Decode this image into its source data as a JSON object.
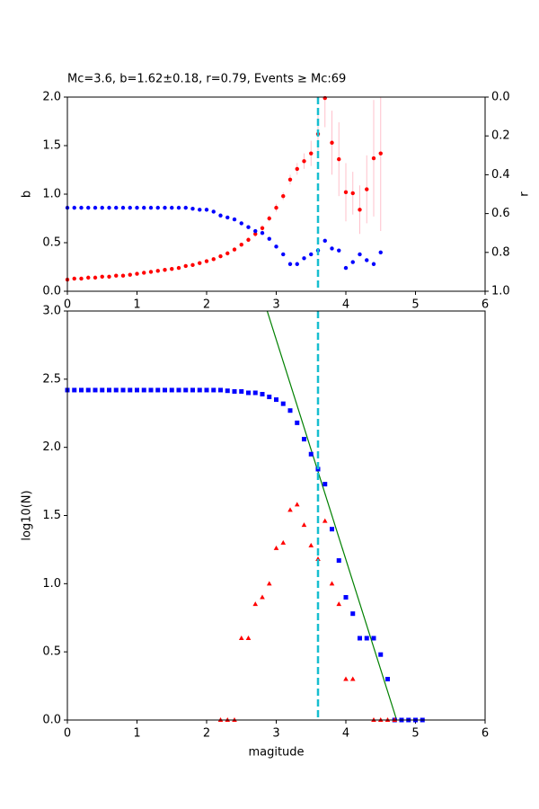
{
  "chart_data": [
    {
      "type": "scatter",
      "title": "Mc=3.6, b=1.62±0.18, r=0.79, Events ≥ Mc:69",
      "y_label": "b",
      "y2_label": "r",
      "xlim": [
        0,
        6
      ],
      "xticks": [
        0,
        1,
        2,
        3,
        4,
        5,
        6
      ],
      "ylim": [
        0,
        2
      ],
      "yticks": [
        {
          "value": 0,
          "label": "0.0"
        },
        {
          "value": 0.5,
          "label": "0.5"
        },
        {
          "value": 1,
          "label": "1.0"
        },
        {
          "value": 1.5,
          "label": "1.5"
        },
        {
          "value": 2,
          "label": "2.0"
        }
      ],
      "y2lim": [
        1,
        0
      ],
      "y2ticks": [
        {
          "value": 0,
          "label": "0.0"
        },
        {
          "value": 0.2,
          "label": "0.2"
        },
        {
          "value": 0.4,
          "label": "0.4"
        },
        {
          "value": 0.6,
          "label": "0.6"
        },
        {
          "value": 0.8,
          "label": "0.8"
        },
        {
          "value": 1,
          "label": "1.0"
        }
      ],
      "mc_line": 3.6,
      "mc_color": "#17becf",
      "series": [
        {
          "color": "#ff0000",
          "marker": "circle",
          "error_color": "#ffc0cb",
          "x": [
            0,
            0.1,
            0.2,
            0.3,
            0.4,
            0.5,
            0.6,
            0.7,
            0.8,
            0.9,
            1,
            1.1,
            1.2,
            1.3,
            1.4,
            1.5,
            1.6,
            1.7,
            1.8,
            1.9,
            2,
            2.1,
            2.2,
            2.3,
            2.4,
            2.5,
            2.6,
            2.7,
            2.8,
            2.9,
            3,
            3.1,
            3.2,
            3.3,
            3.4,
            3.5,
            3.6,
            3.7,
            3.8,
            3.9,
            4,
            4.1,
            4.2,
            4.3,
            4.4,
            4.5
          ],
          "values": [
            0.12,
            0.13,
            0.13,
            0.14,
            0.14,
            0.15,
            0.15,
            0.16,
            0.16,
            0.17,
            0.18,
            0.19,
            0.2,
            0.21,
            0.22,
            0.23,
            0.24,
            0.26,
            0.27,
            0.29,
            0.31,
            0.33,
            0.36,
            0.39,
            0.43,
            0.48,
            0.53,
            0.59,
            0.65,
            0.75,
            0.86,
            0.98,
            1.15,
            1.26,
            1.34,
            1.42,
            1.62,
            1.99,
            1.53,
            1.36,
            1.02,
            1.01,
            0.84,
            1.05,
            1.37,
            1.42
          ],
          "errors": [
            0.01,
            0.01,
            0.01,
            0.01,
            0.01,
            0.01,
            0.01,
            0.01,
            0.01,
            0.01,
            0.01,
            0.01,
            0.01,
            0.01,
            0.01,
            0.01,
            0.01,
            0.01,
            0.01,
            0.01,
            0.01,
            0.01,
            0.01,
            0.02,
            0.02,
            0.02,
            0.02,
            0.03,
            0.03,
            0.03,
            0.04,
            0.04,
            0.05,
            0.06,
            0.08,
            0.13,
            0.2,
            0.3,
            0.33,
            0.38,
            0.3,
            0.22,
            0.25,
            0.35,
            0.6,
            0.8
          ]
        },
        {
          "color": "#0000ff",
          "marker": "circle",
          "axis": "y2",
          "x": [
            0,
            0.1,
            0.2,
            0.3,
            0.4,
            0.5,
            0.6,
            0.7,
            0.8,
            0.9,
            1,
            1.1,
            1.2,
            1.3,
            1.4,
            1.5,
            1.6,
            1.7,
            1.8,
            1.9,
            2,
            2.1,
            2.2,
            2.3,
            2.4,
            2.5,
            2.6,
            2.7,
            2.8,
            2.9,
            3,
            3.1,
            3.2,
            3.3,
            3.4,
            3.5,
            3.6,
            3.7,
            3.8,
            3.9,
            4,
            4.1,
            4.2,
            4.3,
            4.4,
            4.5
          ],
          "values": [
            0.57,
            0.57,
            0.57,
            0.57,
            0.57,
            0.57,
            0.57,
            0.57,
            0.57,
            0.57,
            0.57,
            0.57,
            0.57,
            0.57,
            0.57,
            0.57,
            0.57,
            0.57,
            0.575,
            0.58,
            0.58,
            0.59,
            0.61,
            0.62,
            0.63,
            0.65,
            0.67,
            0.69,
            0.7,
            0.73,
            0.77,
            0.81,
            0.86,
            0.86,
            0.83,
            0.81,
            0.79,
            0.74,
            0.78,
            0.79,
            0.88,
            0.85,
            0.81,
            0.84,
            0.86,
            0.8
          ]
        }
      ]
    },
    {
      "type": "scatter",
      "x_label": "magitude",
      "y_label": "log10(N)",
      "xlim": [
        0,
        6
      ],
      "xticks": [
        0,
        1,
        2,
        3,
        4,
        5,
        6
      ],
      "ylim": [
        0,
        3
      ],
      "yticks": [
        {
          "value": 0,
          "label": "0.0"
        },
        {
          "value": 0.5,
          "label": "0.5"
        },
        {
          "value": 1,
          "label": "1.0"
        },
        {
          "value": 1.5,
          "label": "1.5"
        },
        {
          "value": 2,
          "label": "2.0"
        },
        {
          "value": 2.5,
          "label": "2.5"
        },
        {
          "value": 3,
          "label": "3.0"
        }
      ],
      "mc_line": 3.6,
      "mc_color": "#17becf",
      "series": [
        {
          "color": "#008000",
          "marker": "line",
          "x": [
            2.87,
            4.73
          ],
          "values": [
            3.0,
            0
          ]
        },
        {
          "color": "#0000ff",
          "marker": "square",
          "x": [
            0,
            0.1,
            0.2,
            0.3,
            0.4,
            0.5,
            0.6,
            0.7,
            0.8,
            0.9,
            1,
            1.1,
            1.2,
            1.3,
            1.4,
            1.5,
            1.6,
            1.7,
            1.8,
            1.9,
            2,
            2.1,
            2.2,
            2.3,
            2.4,
            2.5,
            2.6,
            2.7,
            2.8,
            2.9,
            3,
            3.1,
            3.2,
            3.3,
            3.4,
            3.5,
            3.6,
            3.7,
            3.8,
            3.9,
            4,
            4.1,
            4.2,
            4.3,
            4.4,
            4.5,
            4.6,
            4.7,
            4.8,
            4.9,
            5,
            5.1
          ],
          "values": [
            2.42,
            2.42,
            2.42,
            2.42,
            2.42,
            2.42,
            2.42,
            2.42,
            2.42,
            2.42,
            2.42,
            2.42,
            2.42,
            2.42,
            2.42,
            2.42,
            2.42,
            2.42,
            2.42,
            2.42,
            2.42,
            2.42,
            2.42,
            2.415,
            2.41,
            2.41,
            2.4,
            2.4,
            2.39,
            2.37,
            2.35,
            2.32,
            2.27,
            2.18,
            2.06,
            1.95,
            1.84,
            1.73,
            1.4,
            1.17,
            0.9,
            0.78,
            0.6,
            0.6,
            0.6,
            0.48,
            0.3,
            0,
            0,
            0,
            0,
            0
          ]
        },
        {
          "color": "#ff0000",
          "marker": "triangle",
          "x": [
            2.2,
            2.3,
            2.4,
            2.5,
            2.6,
            2.7,
            2.8,
            2.9,
            3,
            3.1,
            3.2,
            3.3,
            3.4,
            3.5,
            3.6,
            3.7,
            3.8,
            3.9,
            4,
            4.1,
            4.4,
            4.5,
            4.6,
            4.7
          ],
          "values": [
            0,
            0,
            0,
            0.6,
            0.6,
            0.85,
            0.9,
            1.0,
            1.26,
            1.3,
            1.54,
            1.58,
            1.43,
            1.28,
            1.18,
            1.46,
            1.0,
            0.85,
            0.3,
            0.3,
            0,
            0,
            0,
            0
          ]
        }
      ]
    }
  ]
}
